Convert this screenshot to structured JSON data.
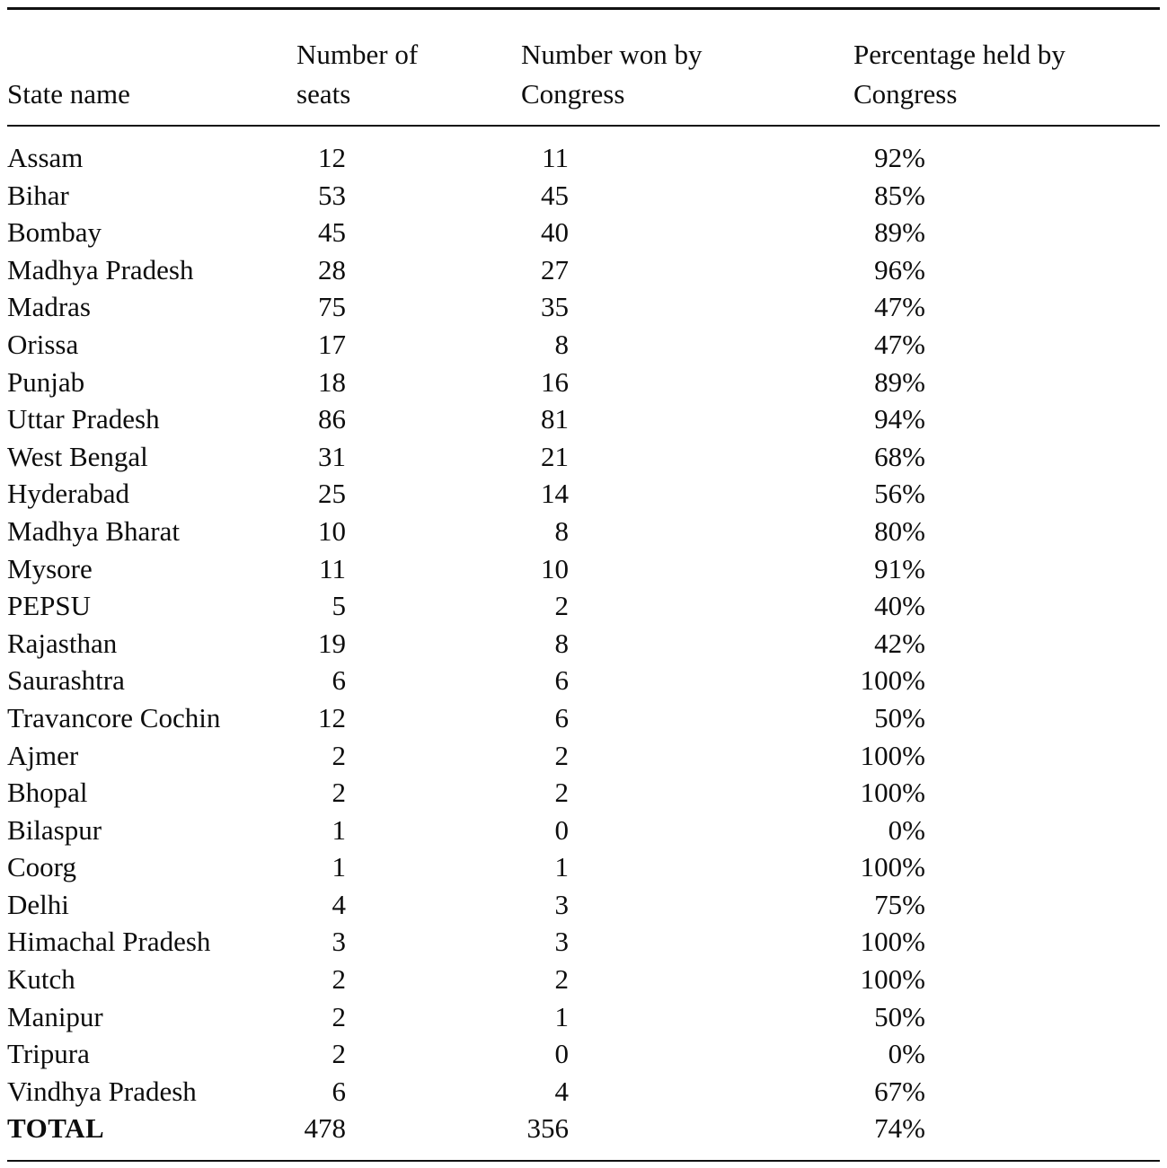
{
  "table": {
    "columns": {
      "state": "State name",
      "seats_line1": "Number of",
      "seats_line2": "seats",
      "won_line1": "Number won by",
      "won_line2": "Congress",
      "pct_line1": "Percentage held by",
      "pct_line2": "Congress"
    },
    "rows": [
      {
        "state": "Assam",
        "seats": "12",
        "won": "11",
        "pct": "92%"
      },
      {
        "state": "Bihar",
        "seats": "53",
        "won": "45",
        "pct": "85%"
      },
      {
        "state": "Bombay",
        "seats": "45",
        "won": "40",
        "pct": "89%"
      },
      {
        "state": "Madhya Pradesh",
        "seats": "28",
        "won": "27",
        "pct": "96%"
      },
      {
        "state": "Madras",
        "seats": "75",
        "won": "35",
        "pct": "47%"
      },
      {
        "state": "Orissa",
        "seats": "17",
        "won": "8",
        "pct": "47%"
      },
      {
        "state": "Punjab",
        "seats": "18",
        "won": "16",
        "pct": "89%"
      },
      {
        "state": "Uttar Pradesh",
        "seats": "86",
        "won": "81",
        "pct": "94%"
      },
      {
        "state": "West Bengal",
        "seats": "31",
        "won": "21",
        "pct": "68%"
      },
      {
        "state": "Hyderabad",
        "seats": "25",
        "won": "14",
        "pct": "56%"
      },
      {
        "state": "Madhya Bharat",
        "seats": "10",
        "won": "8",
        "pct": "80%"
      },
      {
        "state": "Mysore",
        "seats": "11",
        "won": "10",
        "pct": "91%"
      },
      {
        "state": "PEPSU",
        "seats": "5",
        "won": "2",
        "pct": "40%"
      },
      {
        "state": "Rajasthan",
        "seats": "19",
        "won": "8",
        "pct": "42%"
      },
      {
        "state": "Saurashtra",
        "seats": "6",
        "won": "6",
        "pct": "100%"
      },
      {
        "state": "Travancore Cochin",
        "seats": "12",
        "won": "6",
        "pct": "50%"
      },
      {
        "state": "Ajmer",
        "seats": "2",
        "won": "2",
        "pct": "100%"
      },
      {
        "state": "Bhopal",
        "seats": "2",
        "won": "2",
        "pct": "100%"
      },
      {
        "state": "Bilaspur",
        "seats": "1",
        "won": "0",
        "pct": "0%"
      },
      {
        "state": "Coorg",
        "seats": "1",
        "won": "1",
        "pct": "100%"
      },
      {
        "state": "Delhi",
        "seats": "4",
        "won": "3",
        "pct": "75%"
      },
      {
        "state": "Himachal Pradesh",
        "seats": "3",
        "won": "3",
        "pct": "100%"
      },
      {
        "state": "Kutch",
        "seats": "2",
        "won": "2",
        "pct": "100%"
      },
      {
        "state": "Manipur",
        "seats": "2",
        "won": "1",
        "pct": "50%"
      },
      {
        "state": "Tripura",
        "seats": "2",
        "won": "0",
        "pct": "0%"
      },
      {
        "state": "Vindhya Pradesh",
        "seats": "6",
        "won": "4",
        "pct": "67%"
      },
      {
        "state": "TOTAL",
        "seats": "478",
        "won": "356",
        "pct": "74%"
      }
    ]
  }
}
